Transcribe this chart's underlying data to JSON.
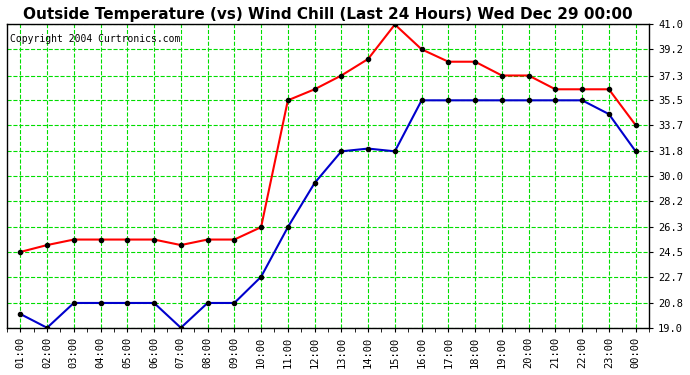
{
  "title": "Outside Temperature (vs) Wind Chill (Last 24 Hours) Wed Dec 29 00:00",
  "copyright": "Copyright 2004 Curtronics.com",
  "x_labels": [
    "01:00",
    "02:00",
    "03:00",
    "04:00",
    "05:00",
    "06:00",
    "07:00",
    "08:00",
    "09:00",
    "10:00",
    "11:00",
    "12:00",
    "13:00",
    "14:00",
    "15:00",
    "16:00",
    "17:00",
    "18:00",
    "19:00",
    "20:00",
    "21:00",
    "22:00",
    "23:00",
    "00:00"
  ],
  "outside_temp": [
    20.0,
    19.0,
    20.8,
    20.8,
    20.8,
    20.8,
    19.0,
    20.8,
    20.8,
    22.7,
    26.3,
    29.5,
    31.8,
    32.0,
    31.8,
    35.5,
    35.5,
    35.5,
    35.5,
    35.5,
    35.5,
    35.5,
    34.5,
    31.8
  ],
  "wind_chill": [
    24.5,
    25.0,
    25.4,
    25.4,
    25.4,
    25.4,
    25.0,
    25.4,
    25.4,
    26.3,
    35.5,
    36.3,
    37.3,
    38.5,
    41.0,
    39.2,
    38.3,
    38.3,
    37.3,
    37.3,
    36.3,
    36.3,
    36.3,
    33.7
  ],
  "ylim": [
    19.0,
    41.0
  ],
  "yticks": [
    19.0,
    20.8,
    22.7,
    24.5,
    26.3,
    28.2,
    30.0,
    31.8,
    33.7,
    35.5,
    37.3,
    39.2,
    41.0
  ],
  "outside_color": "#0000CC",
  "wind_chill_color": "#FF0000",
  "bg_color": "#FFFFFF",
  "plot_bg_color": "#FFFFFF",
  "grid_color": "#00DD00",
  "grid_linestyle": "--",
  "title_color": "#000000",
  "copyright_color": "#000000",
  "marker": "o",
  "marker_color": "#000000",
  "marker_size": 3,
  "linewidth": 1.5,
  "title_fontsize": 11,
  "tick_fontsize": 7.5,
  "copyright_fontsize": 7
}
